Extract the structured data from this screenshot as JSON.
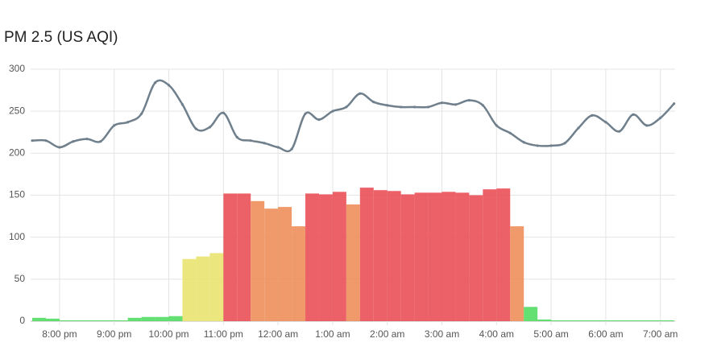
{
  "chart_data": {
    "type": "bar_line",
    "title": "PM 2.5 (US AQI)",
    "x": [
      19.5,
      19.75,
      20,
      20.25,
      20.5,
      20.75,
      21,
      21.25,
      21.5,
      21.75,
      22,
      22.25,
      22.5,
      22.75,
      23,
      23.25,
      23.5,
      23.75,
      24,
      24.25,
      24.5,
      24.75,
      25,
      25.25,
      25.5,
      25.75,
      26,
      26.25,
      26.5,
      26.75,
      27,
      27.25,
      27.5,
      27.75,
      28,
      28.25,
      28.5,
      28.75,
      29,
      29.25,
      29.5,
      29.75,
      30,
      30.25,
      30.5,
      30.75,
      31,
      31.25
    ],
    "xlim": [
      19.47,
      31.27
    ],
    "xticks": [
      {
        "value": 20,
        "label": "8:00 pm"
      },
      {
        "value": 21,
        "label": "9:00 pm"
      },
      {
        "value": 22,
        "label": "10:00 pm"
      },
      {
        "value": 23,
        "label": "11:00 pm"
      },
      {
        "value": 24,
        "label": "12:00 am"
      },
      {
        "value": 25,
        "label": "1:00 am"
      },
      {
        "value": 26,
        "label": "2:00 am"
      },
      {
        "value": 27,
        "label": "3:00 am"
      },
      {
        "value": 28,
        "label": "4:00 am"
      },
      {
        "value": 29,
        "label": "5:00 am"
      },
      {
        "value": 30,
        "label": "6:00 am"
      },
      {
        "value": 31,
        "label": "7:00 am"
      }
    ],
    "ylim": [
      0,
      300
    ],
    "yticks": [
      0,
      50,
      100,
      150,
      200,
      250,
      300
    ],
    "grid": true,
    "bars": {
      "values": [
        4,
        3,
        1,
        1,
        1,
        1,
        1,
        4,
        5,
        5,
        6,
        74,
        77,
        81,
        152,
        152,
        143,
        134,
        136,
        113,
        152,
        151,
        154,
        139,
        159,
        156,
        155,
        151,
        153,
        153,
        154,
        153,
        150,
        157,
        158,
        113,
        17,
        2,
        1,
        1,
        1,
        1,
        1,
        1,
        1,
        1,
        1,
        null
      ],
      "colors": [
        "#4fdc5f",
        "#4fdc5f",
        "#4fdc5f",
        "#4fdc5f",
        "#4fdc5f",
        "#4fdc5f",
        "#4fdc5f",
        "#4fdc5f",
        "#4fdc5f",
        "#4fdc5f",
        "#4fdc5f",
        "#e8e36b",
        "#e8e36b",
        "#e8e36b",
        "#e94b52",
        "#e94b52",
        "#ee8c56",
        "#ee8c56",
        "#ee8c56",
        "#ee8c56",
        "#e94b52",
        "#e94b52",
        "#e94b52",
        "#ee8c56",
        "#e94b52",
        "#e94b52",
        "#e94b52",
        "#e94b52",
        "#e94b52",
        "#e94b52",
        "#e94b52",
        "#e94b52",
        "#e94b52",
        "#e94b52",
        "#e94b52",
        "#ee8c56",
        "#4fdc5f",
        "#4fdc5f",
        "#4fdc5f",
        "#4fdc5f",
        "#4fdc5f",
        "#4fdc5f",
        "#4fdc5f",
        "#4fdc5f",
        "#4fdc5f",
        "#4fdc5f",
        "#4fdc5f",
        "#4fdc5f"
      ]
    },
    "line": {
      "color": "#6f7f8c",
      "values": [
        215,
        215,
        207,
        214,
        217,
        214,
        233,
        237,
        247,
        284,
        281,
        258,
        229,
        231,
        248,
        219,
        215,
        212,
        207,
        205,
        247,
        240,
        250,
        255,
        271,
        261,
        257,
        255,
        255,
        255,
        260,
        258,
        263,
        257,
        233,
        224,
        213,
        209,
        209,
        212,
        230,
        245,
        237,
        226,
        246,
        233,
        242,
        259
      ]
    }
  }
}
